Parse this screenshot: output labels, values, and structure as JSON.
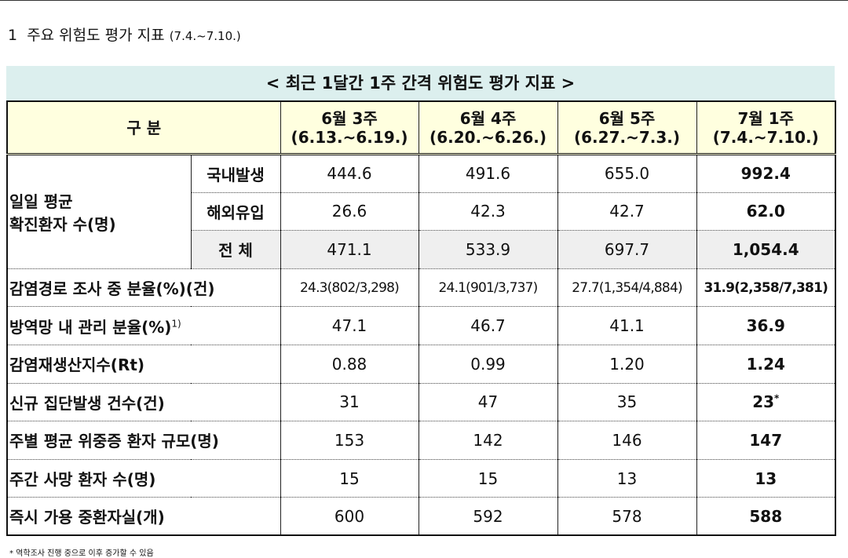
{
  "header": {
    "number": "1",
    "title": "주요 위험도 평가 지표",
    "period": "(7.4.~7.10.)"
  },
  "table": {
    "caption": "< 최근 1달간 1주 간격 위험도 평가 지표 >",
    "corner": "구 분",
    "columns": [
      {
        "week": "6월 3주",
        "range": "(6.13.~6.19.)"
      },
      {
        "week": "6월 4주",
        "range": "(6.20.~6.26.)"
      },
      {
        "week": "6월 5주",
        "range": "(6.27.~7.3.)"
      },
      {
        "week": "7월 1주",
        "range": "(7.4.~7.10.)"
      }
    ],
    "daily_group": [
      "일일 평균",
      "확진환자 수(명)"
    ],
    "daily_rows": [
      {
        "label": "국내발생",
        "values": [
          "444.6",
          "491.6",
          "655.0",
          "992.4"
        ]
      },
      {
        "label": "해외유입",
        "values": [
          "26.6",
          "42.3",
          "42.7",
          "62.0"
        ]
      },
      {
        "label": "전 체",
        "values": [
          "471.1",
          "533.9",
          "697.7",
          "1,054.4"
        ]
      }
    ],
    "rows": [
      {
        "label": "감염경로 조사 중 분율(%)(건)",
        "values": [
          "24.3(802/3,298)",
          "24.1(901/3,737)",
          "27.7(1,354/4,884)",
          "31.9(2,358/7,381)"
        ]
      },
      {
        "label": "방역망 내 관리 분율(%)",
        "label_note": "1)",
        "values": [
          "47.1",
          "46.7",
          "41.1",
          "36.9"
        ]
      },
      {
        "label": "감염재생산지수(Rt)",
        "values": [
          "0.88",
          "0.99",
          "1.20",
          "1.24"
        ]
      },
      {
        "label": "신규 집단발생 건수(건)",
        "values": [
          "31",
          "47",
          "35",
          "23"
        ],
        "last_note": "*"
      },
      {
        "label": "주별 평균 위중증 환자 규모(명)",
        "values": [
          "153",
          "142",
          "146",
          "147"
        ]
      },
      {
        "label": "주간 사망 환자 수(명)",
        "values": [
          "15",
          "15",
          "13",
          "13"
        ]
      },
      {
        "label": "즉시 가용 중환자실(개)",
        "values": [
          "600",
          "592",
          "578",
          "588"
        ]
      }
    ],
    "footnote": "* 역학조사 진행 중으로 이후 증가할 수 있음"
  }
}
